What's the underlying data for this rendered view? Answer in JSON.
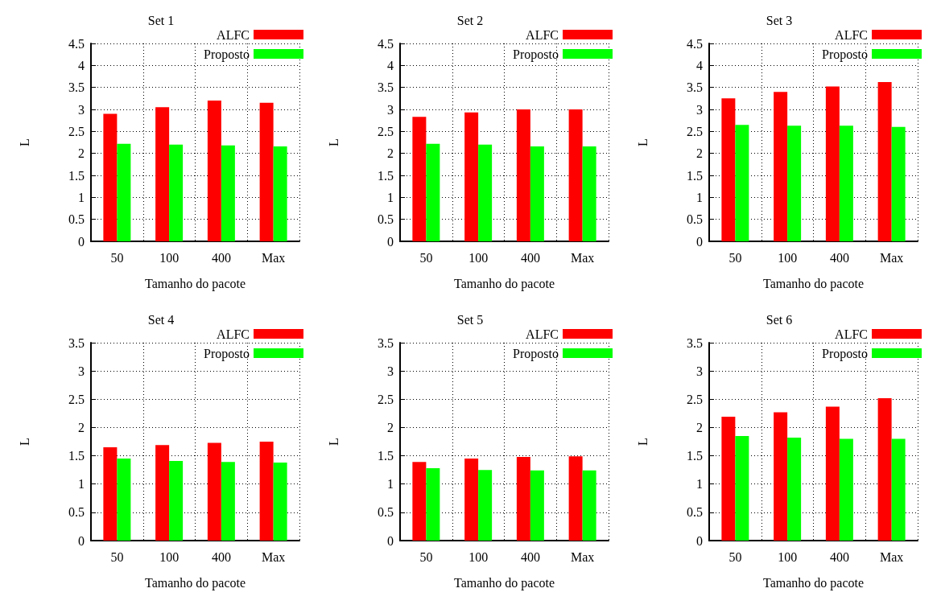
{
  "chart_data": [
    {
      "type": "bar",
      "title": "Set 1",
      "xlabel": "Tamanho do pacote",
      "ylabel": "L",
      "categories": [
        "50",
        "100",
        "400",
        "Max"
      ],
      "ylim": [
        0,
        4.5
      ],
      "yticks": [
        0,
        0.5,
        1,
        1.5,
        2,
        2.5,
        3,
        3.5,
        4,
        4.5
      ],
      "grid": true,
      "legend": "top right",
      "series": [
        {
          "name": "ALFC",
          "color": "#ff0000",
          "values": [
            2.9,
            3.05,
            3.2,
            3.15
          ]
        },
        {
          "name": "Proposto",
          "color": "#00ff00",
          "values": [
            2.22,
            2.2,
            2.18,
            2.16
          ]
        }
      ]
    },
    {
      "type": "bar",
      "title": "Set 2",
      "xlabel": "Tamanho do pacote",
      "ylabel": "L",
      "categories": [
        "50",
        "100",
        "400",
        "Max"
      ],
      "ylim": [
        0,
        4.5
      ],
      "yticks": [
        0,
        0.5,
        1,
        1.5,
        2,
        2.5,
        3,
        3.5,
        4,
        4.5
      ],
      "grid": true,
      "legend": "top right",
      "series": [
        {
          "name": "ALFC",
          "color": "#ff0000",
          "values": [
            2.83,
            2.93,
            3.0,
            3.0
          ]
        },
        {
          "name": "Proposto",
          "color": "#00ff00",
          "values": [
            2.22,
            2.2,
            2.16,
            2.16
          ]
        }
      ]
    },
    {
      "type": "bar",
      "title": "Set 3",
      "xlabel": "Tamanho do pacote",
      "ylabel": "L",
      "categories": [
        "50",
        "100",
        "400",
        "Max"
      ],
      "ylim": [
        0,
        4.5
      ],
      "yticks": [
        0,
        0.5,
        1,
        1.5,
        2,
        2.5,
        3,
        3.5,
        4,
        4.5
      ],
      "grid": true,
      "legend": "top right",
      "series": [
        {
          "name": "ALFC",
          "color": "#ff0000",
          "values": [
            3.25,
            3.4,
            3.52,
            3.62
          ]
        },
        {
          "name": "Proposto",
          "color": "#00ff00",
          "values": [
            2.65,
            2.63,
            2.63,
            2.6
          ]
        }
      ]
    },
    {
      "type": "bar",
      "title": "Set 4",
      "xlabel": "Tamanho do pacote",
      "ylabel": "L",
      "categories": [
        "50",
        "100",
        "400",
        "Max"
      ],
      "ylim": [
        0,
        3.5
      ],
      "yticks": [
        0,
        0.5,
        1,
        1.5,
        2,
        2.5,
        3,
        3.5
      ],
      "grid": true,
      "legend": "top right",
      "series": [
        {
          "name": "ALFC",
          "color": "#ff0000",
          "values": [
            1.65,
            1.69,
            1.73,
            1.75
          ]
        },
        {
          "name": "Proposto",
          "color": "#00ff00",
          "values": [
            1.45,
            1.41,
            1.39,
            1.38
          ]
        }
      ]
    },
    {
      "type": "bar",
      "title": "Set 5",
      "xlabel": "Tamanho do pacote",
      "ylabel": "L",
      "categories": [
        "50",
        "100",
        "400",
        "Max"
      ],
      "ylim": [
        0,
        3.5
      ],
      "yticks": [
        0,
        0.5,
        1,
        1.5,
        2,
        2.5,
        3,
        3.5
      ],
      "grid": true,
      "legend": "top right",
      "series": [
        {
          "name": "ALFC",
          "color": "#ff0000",
          "values": [
            1.39,
            1.45,
            1.48,
            1.49
          ]
        },
        {
          "name": "Proposto",
          "color": "#00ff00",
          "values": [
            1.28,
            1.25,
            1.24,
            1.24
          ]
        }
      ]
    },
    {
      "type": "bar",
      "title": "Set 6",
      "xlabel": "Tamanho do pacote",
      "ylabel": "L",
      "categories": [
        "50",
        "100",
        "400",
        "Max"
      ],
      "ylim": [
        0,
        3.5
      ],
      "yticks": [
        0,
        0.5,
        1,
        1.5,
        2,
        2.5,
        3,
        3.5
      ],
      "grid": true,
      "legend": "top right",
      "series": [
        {
          "name": "ALFC",
          "color": "#ff0000",
          "values": [
            2.19,
            2.27,
            2.37,
            2.52
          ]
        },
        {
          "name": "Proposto",
          "color": "#00ff00",
          "values": [
            1.85,
            1.82,
            1.8,
            1.8
          ]
        }
      ]
    }
  ]
}
